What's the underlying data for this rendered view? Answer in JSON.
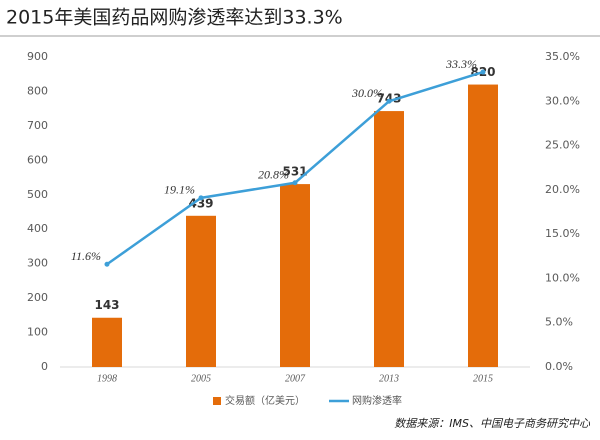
{
  "chart_data": {
    "type": "bar_line",
    "title": "2015年美国药品网购渗透率达到33.3%",
    "categories": [
      "1998",
      "2005",
      "2007",
      "2013",
      "2015"
    ],
    "series": [
      {
        "name": "交易额（亿美元）",
        "type": "bar",
        "color": "#e46c0a",
        "values": [
          143,
          439,
          531,
          743,
          820
        ]
      },
      {
        "name": "网购渗透率",
        "type": "line",
        "axis": "y2",
        "color": "#3d9fd8",
        "values": [
          11.6,
          19.1,
          20.8,
          30.0,
          33.3
        ],
        "value_labels": [
          "11.6%",
          "19.1%",
          "20.8%",
          "30.0%",
          "33.3%"
        ]
      }
    ],
    "ylim": [
      0,
      900
    ],
    "yticks": [
      0,
      100,
      200,
      300,
      400,
      500,
      600,
      700,
      800,
      900
    ],
    "y2lim": [
      0,
      35
    ],
    "y2ticks": [
      {
        "value": 0,
        "label": "0.0%"
      },
      {
        "value": 5,
        "label": "5.0%"
      },
      {
        "value": 10,
        "label": "10.0%"
      },
      {
        "value": 15,
        "label": "15.0%"
      },
      {
        "value": 20,
        "label": "20.0%"
      },
      {
        "value": 25,
        "label": "25.0%"
      },
      {
        "value": 30,
        "label": "30.0%"
      },
      {
        "value": 35,
        "label": "35.0%"
      }
    ],
    "source": "数据来源：IMS、中国电子商务研究中心"
  }
}
